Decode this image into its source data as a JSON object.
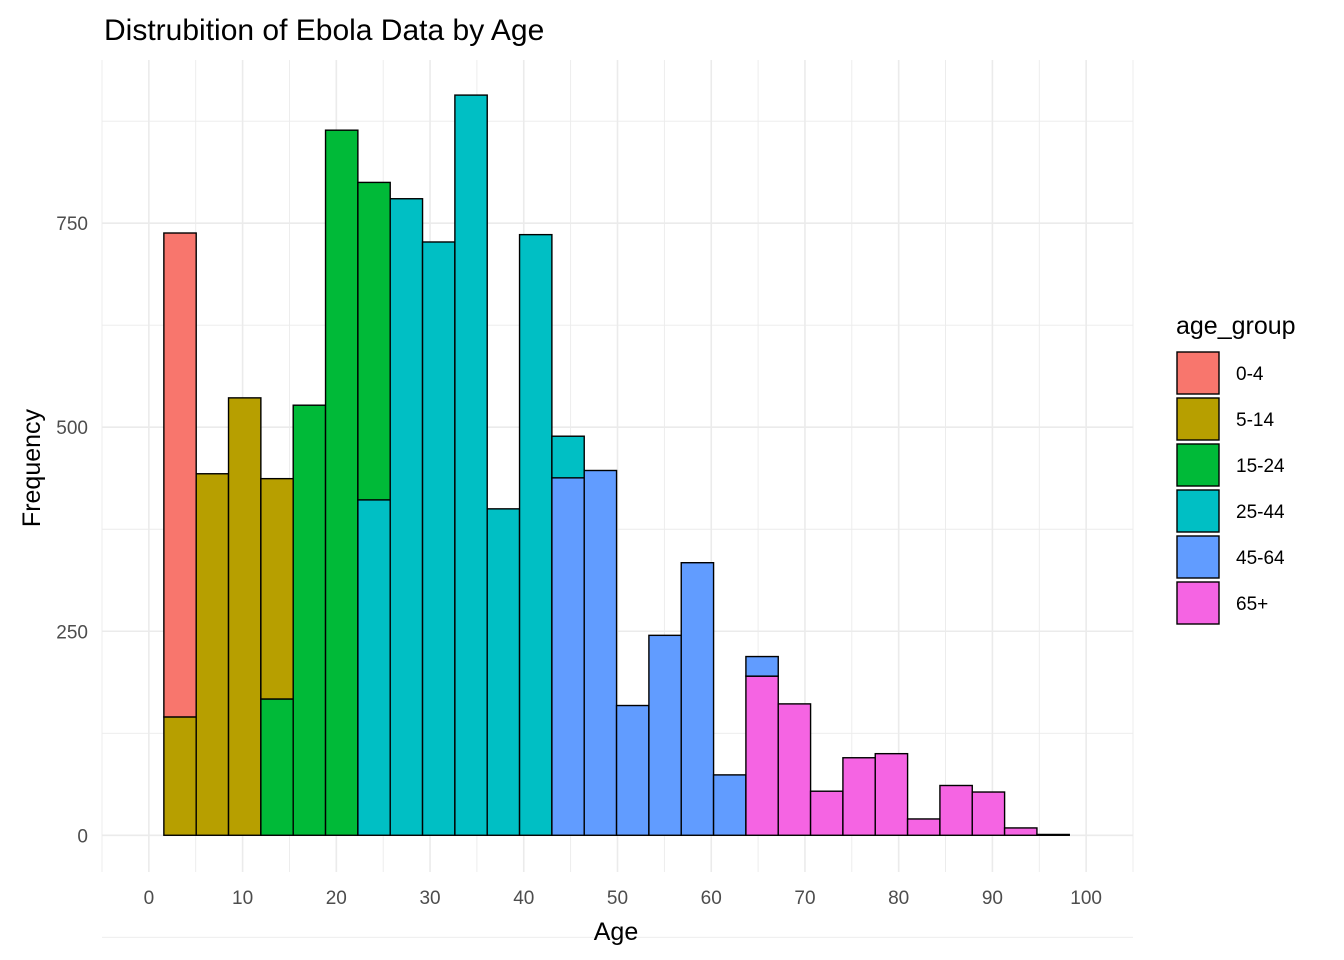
{
  "chart_data": {
    "type": "bar",
    "subtype": "stacked-histogram",
    "title": "Distrubition of Ebola Data by Age",
    "xlabel": "Age",
    "ylabel": "Frequency",
    "xlim": [
      -5,
      105
    ],
    "ylim": [
      -45,
      950
    ],
    "x_ticks": [
      0,
      10,
      20,
      30,
      40,
      50,
      60,
      70,
      80,
      90,
      100
    ],
    "y_ticks": [
      0,
      250,
      500,
      750
    ],
    "grid": true,
    "legend": {
      "title": "age_group",
      "position": "right"
    },
    "series": [
      {
        "name": "0-4",
        "color": "#F8766D"
      },
      {
        "name": "5-14",
        "color": "#B79F00"
      },
      {
        "name": "15-24",
        "color": "#00BA38"
      },
      {
        "name": "25-44",
        "color": "#00BFC4"
      },
      {
        "name": "45-64",
        "color": "#619CFF"
      },
      {
        "name": "65+",
        "color": "#F564E3"
      }
    ],
    "bin_width": 3.45,
    "bins": [
      {
        "x_start": 1.6,
        "segments": [
          {
            "group": "5-14",
            "value": 145
          },
          {
            "group": "0-4",
            "value": 593
          }
        ]
      },
      {
        "x_start": 5.05,
        "segments": [
          {
            "group": "5-14",
            "value": 443
          }
        ]
      },
      {
        "x_start": 8.5,
        "segments": [
          {
            "group": "5-14",
            "value": 536
          }
        ]
      },
      {
        "x_start": 11.95,
        "segments": [
          {
            "group": "15-24",
            "value": 167
          },
          {
            "group": "5-14",
            "value": 270
          }
        ]
      },
      {
        "x_start": 15.4,
        "segments": [
          {
            "group": "15-24",
            "value": 527
          }
        ]
      },
      {
        "x_start": 18.85,
        "segments": [
          {
            "group": "15-24",
            "value": 864
          }
        ]
      },
      {
        "x_start": 22.3,
        "segments": [
          {
            "group": "25-44",
            "value": 411
          },
          {
            "group": "15-24",
            "value": 389
          }
        ]
      },
      {
        "x_start": 25.75,
        "segments": [
          {
            "group": "25-44",
            "value": 780
          }
        ]
      },
      {
        "x_start": 29.2,
        "segments": [
          {
            "group": "25-44",
            "value": 727
          }
        ]
      },
      {
        "x_start": 32.65,
        "segments": [
          {
            "group": "25-44",
            "value": 907
          }
        ]
      },
      {
        "x_start": 36.1,
        "segments": [
          {
            "group": "25-44",
            "value": 400
          }
        ]
      },
      {
        "x_start": 39.55,
        "segments": [
          {
            "group": "25-44",
            "value": 736
          }
        ]
      },
      {
        "x_start": 43.0,
        "segments": [
          {
            "group": "45-64",
            "value": 438
          },
          {
            "group": "25-44",
            "value": 51
          }
        ]
      },
      {
        "x_start": 46.45,
        "segments": [
          {
            "group": "45-64",
            "value": 447
          }
        ]
      },
      {
        "x_start": 49.9,
        "segments": [
          {
            "group": "45-64",
            "value": 159
          }
        ]
      },
      {
        "x_start": 53.35,
        "segments": [
          {
            "group": "45-64",
            "value": 245
          }
        ]
      },
      {
        "x_start": 56.8,
        "segments": [
          {
            "group": "45-64",
            "value": 334
          }
        ]
      },
      {
        "x_start": 60.25,
        "segments": [
          {
            "group": "45-64",
            "value": 74
          }
        ]
      },
      {
        "x_start": 63.7,
        "segments": [
          {
            "group": "65+",
            "value": 195
          },
          {
            "group": "45-64",
            "value": 24
          }
        ]
      },
      {
        "x_start": 67.15,
        "segments": [
          {
            "group": "65+",
            "value": 161
          }
        ]
      },
      {
        "x_start": 70.6,
        "segments": [
          {
            "group": "65+",
            "value": 54
          }
        ]
      },
      {
        "x_start": 74.05,
        "segments": [
          {
            "group": "65+",
            "value": 95
          }
        ]
      },
      {
        "x_start": 77.5,
        "segments": [
          {
            "group": "65+",
            "value": 100
          }
        ]
      },
      {
        "x_start": 80.95,
        "segments": [
          {
            "group": "65+",
            "value": 20
          }
        ]
      },
      {
        "x_start": 84.4,
        "segments": [
          {
            "group": "65+",
            "value": 61
          }
        ]
      },
      {
        "x_start": 87.85,
        "segments": [
          {
            "group": "65+",
            "value": 53
          }
        ]
      },
      {
        "x_start": 91.3,
        "segments": [
          {
            "group": "65+",
            "value": 9
          }
        ]
      },
      {
        "x_start": 94.75,
        "segments": [
          {
            "group": "65+",
            "value": 1
          }
        ]
      }
    ]
  }
}
